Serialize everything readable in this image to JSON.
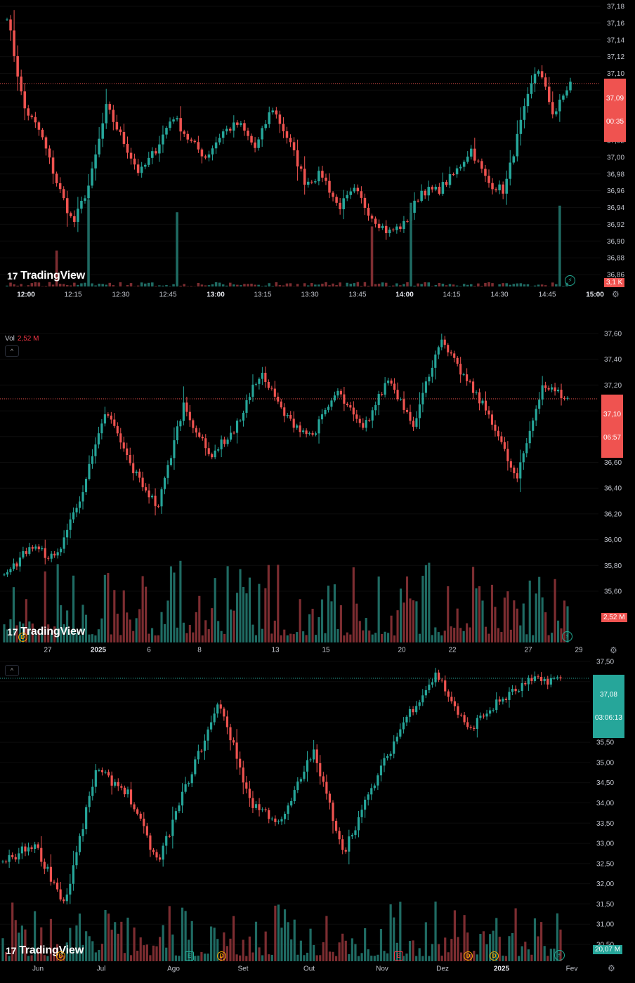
{
  "brand": "TradingView",
  "colors": {
    "up": "#26a69a",
    "down": "#ef5350",
    "up_vol": "#1f6b63",
    "down_vol": "#7d2d31"
  },
  "panels": [
    {
      "id": "intraday",
      "price_tag": {
        "price": "37,09",
        "timer": "00:35",
        "color": "#ef5350"
      },
      "volume_tag": "3,1 K",
      "y_labels": [
        "37,18",
        "37,16",
        "37,14",
        "37,12",
        "37,10",
        "37,08",
        "37,06",
        "37,04",
        "37,02",
        "37,00",
        "36,98",
        "36,96",
        "36,94",
        "36,92",
        "36,90",
        "36,88",
        "36,86"
      ],
      "x_labels": [
        {
          "t": "12:00",
          "bold": true
        },
        {
          "t": "12:15"
        },
        {
          "t": "12:30"
        },
        {
          "t": "12:45"
        },
        {
          "t": "13:00",
          "bold": true
        },
        {
          "t": "13:15"
        },
        {
          "t": "13:30"
        },
        {
          "t": "13:45"
        },
        {
          "t": "14:00",
          "bold": true
        },
        {
          "t": "14:15"
        },
        {
          "t": "14:30"
        },
        {
          "t": "14:45"
        },
        {
          "t": "15:00",
          "bold": true
        }
      ]
    },
    {
      "id": "hourly",
      "vol_label": "Vol",
      "vol_value": "2,52 M",
      "price_tag": {
        "price": "37,10",
        "timer": "06:57",
        "color": "#ef5350"
      },
      "volume_tag": "2,52 M",
      "y_labels": [
        "37,60",
        "37,40",
        "37,20",
        "37,00",
        "36,80",
        "36,60",
        "36,40",
        "36,20",
        "36,00",
        "35,80",
        "35,60"
      ],
      "x_labels": [
        {
          "t": "27"
        },
        {
          "t": "2025",
          "bold": true
        },
        {
          "t": "6"
        },
        {
          "t": "8"
        },
        {
          "t": "13"
        },
        {
          "t": "15"
        },
        {
          "t": "20"
        },
        {
          "t": "22"
        },
        {
          "t": "27"
        },
        {
          "t": "29"
        }
      ]
    },
    {
      "id": "daily",
      "price_tag": {
        "price": "37,08",
        "timer": "03:06:13",
        "color": "#26a69a"
      },
      "volume_tag": "20,07 M",
      "y_labels": [
        "37,50",
        "37,00",
        "36,50",
        "36,00",
        "35,50",
        "35,00",
        "34,50",
        "34,00",
        "33,50",
        "33,00",
        "32,50",
        "32,00",
        "31,50",
        "31,00",
        "30,50"
      ],
      "x_labels": [
        {
          "t": "Jun"
        },
        {
          "t": "Jul"
        },
        {
          "t": "Ago"
        },
        {
          "t": "Set"
        },
        {
          "t": "Out"
        },
        {
          "t": "Nov"
        },
        {
          "t": "Dez"
        },
        {
          "t": "2025",
          "bold": true
        },
        {
          "t": "Fev"
        }
      ],
      "events": [
        "D",
        "E",
        "D",
        "E",
        "D",
        "D"
      ]
    }
  ],
  "chart_data": [
    {
      "type": "candlestick",
      "interval": "intraday (~1 min)",
      "yrange": [
        36.86,
        37.19
      ],
      "last_price": 37.09,
      "close_path": [
        {
          "x": "12:00",
          "y": 37.17
        },
        {
          "x": "12:05",
          "y": 37.06
        },
        {
          "x": "12:10",
          "y": 37.03
        },
        {
          "x": "12:15",
          "y": 36.97
        },
        {
          "x": "12:20",
          "y": 36.92
        },
        {
          "x": "12:25",
          "y": 36.97
        },
        {
          "x": "12:30",
          "y": 37.06
        },
        {
          "x": "12:35",
          "y": 37.02
        },
        {
          "x": "12:40",
          "y": 36.98
        },
        {
          "x": "12:45",
          "y": 37.01
        },
        {
          "x": "12:50",
          "y": 37.05
        },
        {
          "x": "12:55",
          "y": 37.02
        },
        {
          "x": "13:00",
          "y": 37.0
        },
        {
          "x": "13:05",
          "y": 37.03
        },
        {
          "x": "13:10",
          "y": 37.04
        },
        {
          "x": "13:15",
          "y": 37.01
        },
        {
          "x": "13:20",
          "y": 37.06
        },
        {
          "x": "13:25",
          "y": 37.02
        },
        {
          "x": "13:30",
          "y": 36.97
        },
        {
          "x": "13:35",
          "y": 36.98
        },
        {
          "x": "13:40",
          "y": 36.94
        },
        {
          "x": "13:45",
          "y": 36.96
        },
        {
          "x": "13:50",
          "y": 36.93
        },
        {
          "x": "13:55",
          "y": 36.91
        },
        {
          "x": "14:00",
          "y": 36.92
        },
        {
          "x": "14:05",
          "y": 36.96
        },
        {
          "x": "14:10",
          "y": 36.96
        },
        {
          "x": "14:15",
          "y": 36.98
        },
        {
          "x": "14:20",
          "y": 37.01
        },
        {
          "x": "14:25",
          "y": 36.97
        },
        {
          "x": "14:30",
          "y": 36.96
        },
        {
          "x": "14:35",
          "y": 37.04
        },
        {
          "x": "14:40",
          "y": 37.11
        },
        {
          "x": "14:45",
          "y": 37.05
        },
        {
          "x": "14:50",
          "y": 37.09
        }
      ]
    },
    {
      "type": "candlestick",
      "interval": "hourly",
      "yrange": [
        35.45,
        37.65
      ],
      "last_price": 37.1,
      "close_path": [
        {
          "x": "26",
          "y": 35.7
        },
        {
          "x": "27",
          "y": 35.95
        },
        {
          "x": "30",
          "y": 35.85
        },
        {
          "x": "2025",
          "y": 36.35
        },
        {
          "x": "3",
          "y": 37.0
        },
        {
          "x": "6",
          "y": 36.55
        },
        {
          "x": "7",
          "y": 36.25
        },
        {
          "x": "8",
          "y": 37.05
        },
        {
          "x": "9",
          "y": 36.65
        },
        {
          "x": "10",
          "y": 36.85
        },
        {
          "x": "13",
          "y": 37.3
        },
        {
          "x": "14",
          "y": 36.95
        },
        {
          "x": "15",
          "y": 36.8
        },
        {
          "x": "16",
          "y": 37.15
        },
        {
          "x": "17",
          "y": 36.85
        },
        {
          "x": "20",
          "y": 37.25
        },
        {
          "x": "21",
          "y": 36.9
        },
        {
          "x": "22",
          "y": 37.55
        },
        {
          "x": "23",
          "y": 37.25
        },
        {
          "x": "24",
          "y": 36.95
        },
        {
          "x": "27",
          "y": 36.45
        },
        {
          "x": "28",
          "y": 37.2
        },
        {
          "x": "29",
          "y": 37.1
        }
      ]
    },
    {
      "type": "candlestick",
      "interval": "daily",
      "yrange": [
        30.5,
        37.6
      ],
      "last_price": 37.08,
      "close_path": [
        {
          "x": "May",
          "y": 32.5
        },
        {
          "x": "Jun",
          "y": 33.0
        },
        {
          "x": "mid-Jun",
          "y": 31.5
        },
        {
          "x": "Jul",
          "y": 34.8
        },
        {
          "x": "mid-Jul",
          "y": 34.3
        },
        {
          "x": "Ago",
          "y": 32.5
        },
        {
          "x": "mid-Ago",
          "y": 34.6
        },
        {
          "x": "Set",
          "y": 36.5
        },
        {
          "x": "mid-Set",
          "y": 34.0
        },
        {
          "x": "Out",
          "y": 33.5
        },
        {
          "x": "mid-Out",
          "y": 35.3
        },
        {
          "x": "Nov",
          "y": 32.8
        },
        {
          "x": "mid-Nov",
          "y": 34.5
        },
        {
          "x": "Dez",
          "y": 36.1
        },
        {
          "x": "mid-Dez",
          "y": 37.2
        },
        {
          "x": "late-Dez",
          "y": 35.8
        },
        {
          "x": "2025",
          "y": 36.5
        },
        {
          "x": "Jan",
          "y": 37.0
        },
        {
          "x": "late-Jan",
          "y": 37.08
        }
      ]
    }
  ]
}
